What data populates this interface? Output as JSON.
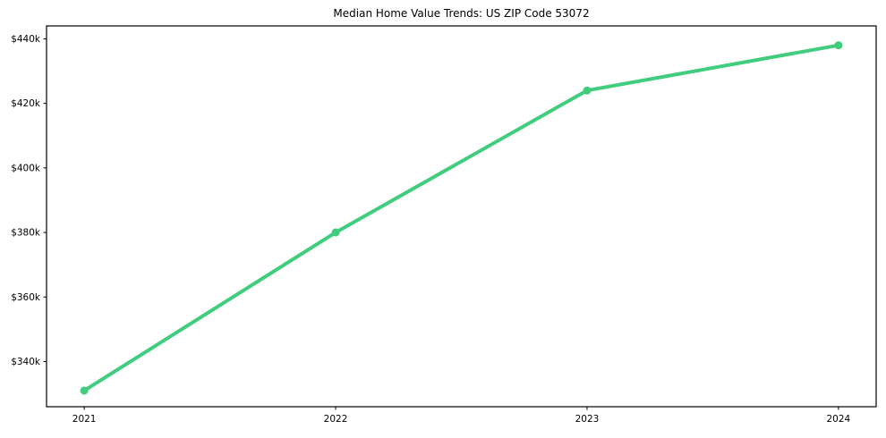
{
  "chart_data": {
    "type": "line",
    "title": "Median Home Value Trends: US ZIP Code 53072",
    "x": [
      2021,
      2022,
      2023,
      2024
    ],
    "xtick_labels": [
      "2021",
      "2022",
      "2023",
      "2024"
    ],
    "series": [
      {
        "name": "Median Home Value",
        "values": [
          331000,
          380000,
          424000,
          438000
        ]
      }
    ],
    "ytick_values": [
      340000,
      360000,
      380000,
      400000,
      420000,
      440000
    ],
    "ytick_labels": [
      "$340k",
      "$360k",
      "$380k",
      "$400k",
      "$420k",
      "$440k"
    ],
    "xlim": [
      2020.85,
      2024.15
    ],
    "ylim": [
      326000,
      444000
    ],
    "grid": false,
    "legend": false,
    "marker": "circle",
    "line_color": "#40cd7e",
    "axis_color": "#000000",
    "background_color": "#ffffff"
  }
}
